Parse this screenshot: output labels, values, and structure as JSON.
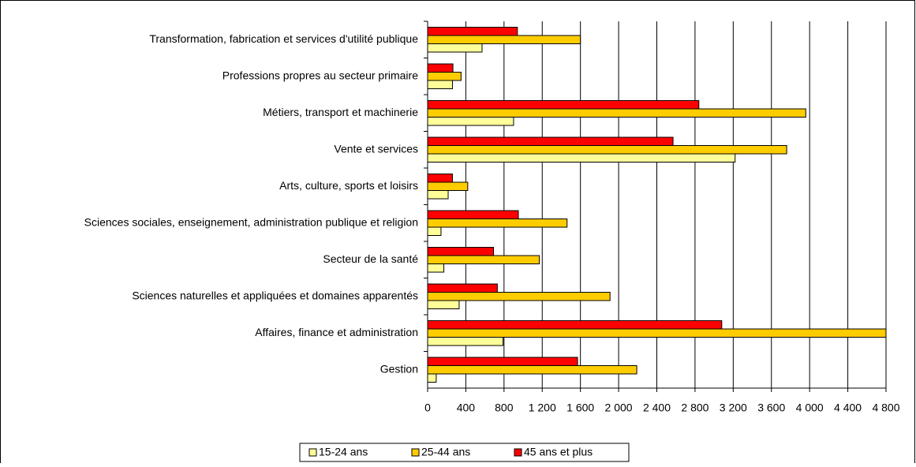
{
  "chart_data": {
    "type": "barh",
    "categories": [
      "Transformation, fabrication et services d'utilité publique",
      "Professions propres au secteur primaire",
      "Métiers, transport et machinerie",
      "Vente et services",
      "Arts, culture, sports et loisirs",
      "Sciences sociales, enseignement, administration publique et religion",
      "Secteur de la santé",
      "Sciences naturelles et appliquées et domaines apparentés",
      "Affaires, finance et administration",
      "Gestion"
    ],
    "series": [
      {
        "name": "15-24 ans",
        "color": "#ffff99",
        "values": [
          570,
          260,
          900,
          3220,
          215,
          140,
          170,
          330,
          790,
          90
        ]
      },
      {
        "name": "25-44 ans",
        "color": "#ffcc00",
        "values": [
          1600,
          350,
          3960,
          3760,
          420,
          1460,
          1170,
          1910,
          4800,
          2190
        ]
      },
      {
        "name": "45 ans et plus",
        "color": "#ff0000",
        "values": [
          940,
          265,
          2840,
          2570,
          260,
          950,
          690,
          730,
          3080,
          1570
        ]
      }
    ],
    "xlim": [
      0,
      4800
    ],
    "xticks": [
      0,
      400,
      800,
      {
        "value": 1200,
        "label": "1 200"
      },
      {
        "value": 1600,
        "label": "1 600"
      },
      {
        "value": 2000,
        "label": "2 000"
      },
      {
        "value": 2400,
        "label": "2 400"
      },
      {
        "value": 2800,
        "label": "2 800"
      },
      {
        "value": 3200,
        "label": "3 200"
      },
      {
        "value": 3600,
        "label": "3 600"
      },
      {
        "value": 4000,
        "label": "4 000"
      },
      {
        "value": 4400,
        "label": "4 400"
      },
      {
        "value": 4800,
        "label": "4 800"
      }
    ],
    "grid": true
  }
}
